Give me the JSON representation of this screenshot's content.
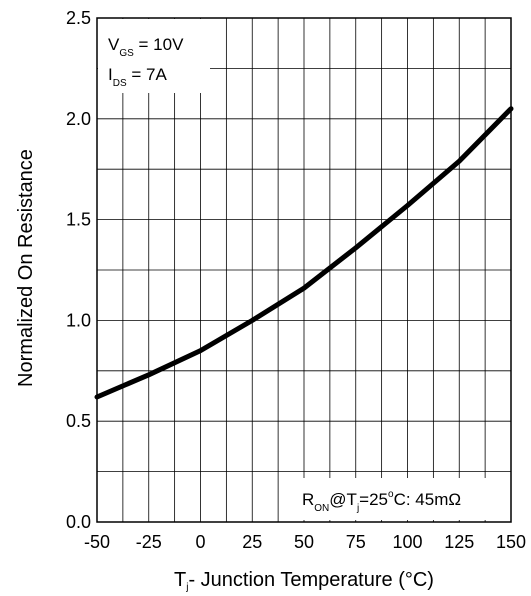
{
  "chart_data": {
    "type": "line",
    "xlabel_main": "T",
    "xlabel_sub": "j",
    "xlabel_rest": "- Junction Temperature (°C)",
    "ylabel": "Normalized On Resistance",
    "xlim": [
      -50,
      150
    ],
    "ylim": [
      0.0,
      2.5
    ],
    "x_ticks": [
      -50,
      -25,
      0,
      25,
      50,
      75,
      100,
      125,
      150
    ],
    "y_ticks": [
      0.0,
      0.5,
      1.0,
      1.5,
      2.0,
      2.5
    ],
    "x_tick_labels": [
      "-50",
      "-25",
      "0",
      "25",
      "50",
      "75",
      "100",
      "125",
      "150"
    ],
    "y_tick_labels": [
      "0.0",
      "0.5",
      "1.0",
      "1.5",
      "2.0",
      "2.5"
    ],
    "x_minor_step": 12.5,
    "y_minor_step": 0.25,
    "grid": true,
    "series": [
      {
        "x": [
          -50,
          -25,
          0,
          25,
          50,
          75,
          100,
          125,
          150
        ],
        "y": [
          0.62,
          0.73,
          0.85,
          1.0,
          1.16,
          1.36,
          1.57,
          1.79,
          2.05
        ]
      }
    ],
    "annotations": {
      "vgs": {
        "main": "V",
        "sub": "GS",
        "rest": " = 10V"
      },
      "ids": {
        "main": "I",
        "sub": "DS",
        "rest": " = 7A"
      },
      "ron": {
        "main": "R",
        "sub": "ON",
        "mid": "@T",
        "sub2": "j",
        "eq": "=25",
        "sup": "o",
        "rest": "C: 45mΩ"
      }
    },
    "colors": {
      "line": "#000000",
      "grid": "#000000",
      "background": "#ffffff"
    }
  }
}
